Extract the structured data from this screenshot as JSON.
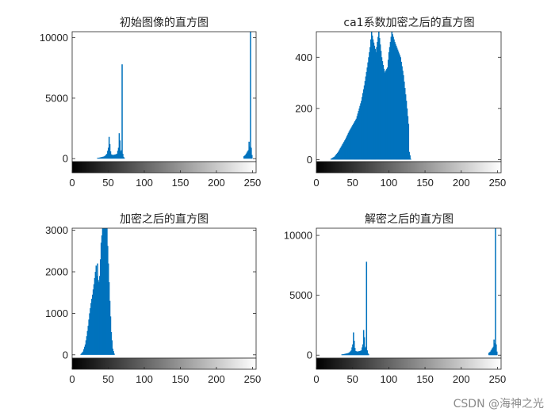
{
  "bar_color": "#0072BD",
  "watermark": "CSDN @海神之光",
  "chart_data": [
    {
      "type": "bar",
      "title": "初始图像的直方图",
      "xlim": [
        0,
        255
      ],
      "ylim": [
        -250,
        10500
      ],
      "xticks": [
        0,
        50,
        100,
        150,
        200,
        250
      ],
      "yticks": [
        0,
        5000,
        10000
      ],
      "series": [
        {
          "peaks": [
            [
              35,
              60
            ],
            [
              38,
              90
            ],
            [
              40,
              120
            ],
            [
              42,
              150
            ],
            [
              44,
              180
            ],
            [
              46,
              260
            ],
            [
              48,
              400
            ],
            [
              50,
              900
            ],
            [
              51,
              1800
            ],
            [
              52,
              1200
            ],
            [
              53,
              600
            ],
            [
              54,
              350
            ],
            [
              56,
              300
            ],
            [
              58,
              320
            ],
            [
              60,
              350
            ],
            [
              62,
              400
            ],
            [
              64,
              900
            ],
            [
              65,
              2100
            ],
            [
              66,
              1500
            ],
            [
              67,
              600
            ],
            [
              68,
              700
            ],
            [
              69,
              7800
            ],
            [
              70,
              400
            ],
            [
              71,
              150
            ],
            [
              72,
              60
            ],
            [
              238,
              200
            ],
            [
              240,
              300
            ],
            [
              242,
              500
            ],
            [
              244,
              700
            ],
            [
              245,
              1400
            ],
            [
              246,
              1000
            ],
            [
              247,
              10500
            ],
            [
              248,
              900
            ],
            [
              249,
              300
            ]
          ]
        }
      ]
    },
    {
      "type": "bar",
      "title": "ca1系数加密之后的直方图",
      "xlim": [
        0,
        255
      ],
      "ylim": [
        -8,
        500
      ],
      "xticks": [
        0,
        50,
        100,
        150,
        200,
        250
      ],
      "yticks": [
        0,
        200,
        400
      ],
      "series": [
        {
          "peaks": [
            [
              20,
              3
            ],
            [
              25,
              12
            ],
            [
              30,
              30
            ],
            [
              35,
              55
            ],
            [
              40,
              80
            ],
            [
              45,
              110
            ],
            [
              50,
              135
            ],
            [
              55,
              160
            ],
            [
              58,
              190
            ],
            [
              62,
              230
            ],
            [
              66,
              290
            ],
            [
              70,
              360
            ],
            [
              74,
              440
            ],
            [
              76,
              500
            ],
            [
              78,
              470
            ],
            [
              82,
              420
            ],
            [
              86,
              500
            ],
            [
              90,
              400
            ],
            [
              94,
              340
            ],
            [
              98,
              360
            ],
            [
              100,
              420
            ],
            [
              104,
              500
            ],
            [
              108,
              460
            ],
            [
              112,
              430
            ],
            [
              116,
              400
            ],
            [
              120,
              330
            ],
            [
              124,
              230
            ],
            [
              127,
              140
            ],
            [
              128,
              30
            ],
            [
              130,
              3
            ]
          ]
        }
      ]
    },
    {
      "type": "bar",
      "title": "加密之后的直方图",
      "xlim": [
        0,
        255
      ],
      "ylim": [
        -80,
        3050
      ],
      "xticks": [
        0,
        50,
        100,
        150,
        200,
        250
      ],
      "yticks": [
        0,
        1000,
        2000,
        3000
      ],
      "series": [
        {
          "peaks": [
            [
              12,
              20
            ],
            [
              15,
              80
            ],
            [
              18,
              250
            ],
            [
              20,
              450
            ],
            [
              22,
              700
            ],
            [
              24,
              1000
            ],
            [
              26,
              1250
            ],
            [
              28,
              1450
            ],
            [
              30,
              1700
            ],
            [
              32,
              2000
            ],
            [
              33,
              2150
            ],
            [
              34,
              1900
            ],
            [
              35,
              2200
            ],
            [
              36,
              1800
            ],
            [
              37,
              1750
            ],
            [
              38,
              1900
            ],
            [
              40,
              2700
            ],
            [
              42,
              3050
            ],
            [
              44,
              3050
            ],
            [
              46,
              3050
            ],
            [
              48,
              3050
            ],
            [
              50,
              2200
            ],
            [
              52,
              1300
            ],
            [
              54,
              550
            ],
            [
              56,
              150
            ],
            [
              58,
              30
            ]
          ]
        }
      ]
    },
    {
      "type": "bar",
      "title": "解密之后的直方图",
      "xlim": [
        0,
        255
      ],
      "ylim": [
        -250,
        10600
      ],
      "xticks": [
        0,
        50,
        100,
        150,
        200,
        250
      ],
      "yticks": [
        0,
        5000,
        10000
      ],
      "series": [
        {
          "peaks": [
            [
              35,
              60
            ],
            [
              38,
              90
            ],
            [
              40,
              120
            ],
            [
              42,
              150
            ],
            [
              44,
              180
            ],
            [
              46,
              260
            ],
            [
              48,
              400
            ],
            [
              50,
              900
            ],
            [
              51,
              1900
            ],
            [
              52,
              1200
            ],
            [
              53,
              600
            ],
            [
              54,
              350
            ],
            [
              56,
              300
            ],
            [
              58,
              320
            ],
            [
              60,
              350
            ],
            [
              62,
              400
            ],
            [
              64,
              900
            ],
            [
              65,
              2100
            ],
            [
              66,
              1500
            ],
            [
              67,
              600
            ],
            [
              68,
              700
            ],
            [
              69,
              7800
            ],
            [
              70,
              400
            ],
            [
              71,
              150
            ],
            [
              72,
              60
            ],
            [
              238,
              200
            ],
            [
              240,
              300
            ],
            [
              242,
              500
            ],
            [
              244,
              700
            ],
            [
              245,
              1300
            ],
            [
              246,
              1000
            ],
            [
              247,
              10600
            ],
            [
              248,
              900
            ],
            [
              249,
              300
            ]
          ]
        }
      ]
    }
  ]
}
